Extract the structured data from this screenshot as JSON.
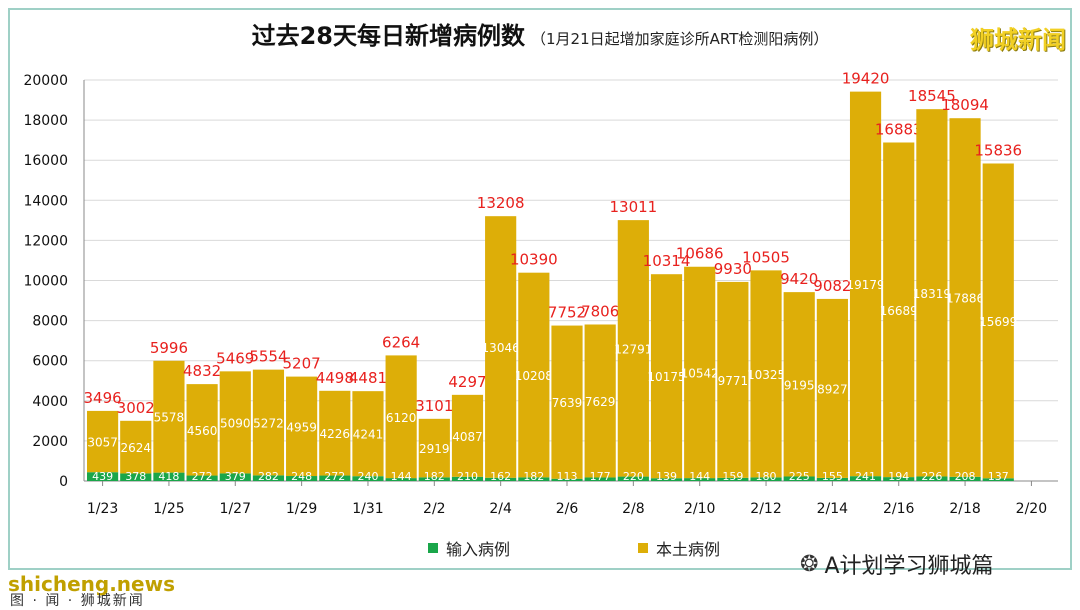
{
  "header": {
    "title": "过去28天每日新增病例数",
    "subtitle": "（1月21日起增加家庭诊所ART检测阳病例）",
    "brand": "狮城新闻"
  },
  "legend": {
    "imported_label": "输入病例",
    "local_label": "本土病例"
  },
  "footer": {
    "wechat_label": "A计划学习狮城篇",
    "watermark": "shicheng.news",
    "watermark_sub": "图 · 闻 · 狮城新闻"
  },
  "colors": {
    "imported": "#1aa64a",
    "local": "#ddae08",
    "total_label": "#e8211e",
    "bar_label": "#ffffff"
  },
  "chart_data": {
    "type": "bar",
    "stacked": true,
    "title": "过去28天每日新增病例数",
    "ylim": [
      0,
      20000
    ],
    "yticks": [
      0,
      2000,
      4000,
      6000,
      8000,
      10000,
      12000,
      14000,
      16000,
      18000,
      20000
    ],
    "x_tick_labels": [
      "1/23",
      "1/25",
      "1/27",
      "1/29",
      "1/31",
      "2/2",
      "2/4",
      "2/6",
      "2/8",
      "2/10",
      "2/12",
      "2/14",
      "2/16",
      "2/18",
      "2/20"
    ],
    "categories": [
      "1/23",
      "1/24",
      "1/25",
      "1/26",
      "1/27",
      "1/28",
      "1/29",
      "1/30",
      "1/31",
      "2/1",
      "2/2",
      "2/3",
      "2/4",
      "2/5",
      "2/6",
      "2/7",
      "2/8",
      "2/9",
      "2/10",
      "2/11",
      "2/12",
      "2/13",
      "2/14",
      "2/15",
      "2/16",
      "2/17",
      "2/18",
      "2/19"
    ],
    "series": [
      {
        "name": "输入病例",
        "values": [
          439,
          378,
          418,
          272,
          379,
          282,
          248,
          272,
          240,
          144,
          182,
          210,
          162,
          182,
          113,
          177,
          220,
          139,
          144,
          159,
          180,
          225,
          155,
          241,
          194,
          226,
          208,
          137
        ]
      },
      {
        "name": "本土病例",
        "values": [
          3057,
          2624,
          5578,
          4560,
          5090,
          5272,
          4959,
          4226,
          4241,
          6120,
          2919,
          4087,
          13046,
          10208,
          7639,
          7629,
          12791,
          10175,
          10542,
          9771,
          10325,
          9195,
          8927,
          19179,
          16689,
          18319,
          17886,
          15699
        ]
      }
    ],
    "totals": [
      3496,
      3002,
      5996,
      4832,
      5469,
      5554,
      5207,
      4498,
      4481,
      6264,
      3101,
      4297,
      13208,
      10390,
      7752,
      7806,
      13011,
      10314,
      10686,
      9930,
      10505,
      9420,
      9082,
      19420,
      16883,
      18545,
      18094,
      15836
    ],
    "legend_position": "bottom"
  }
}
